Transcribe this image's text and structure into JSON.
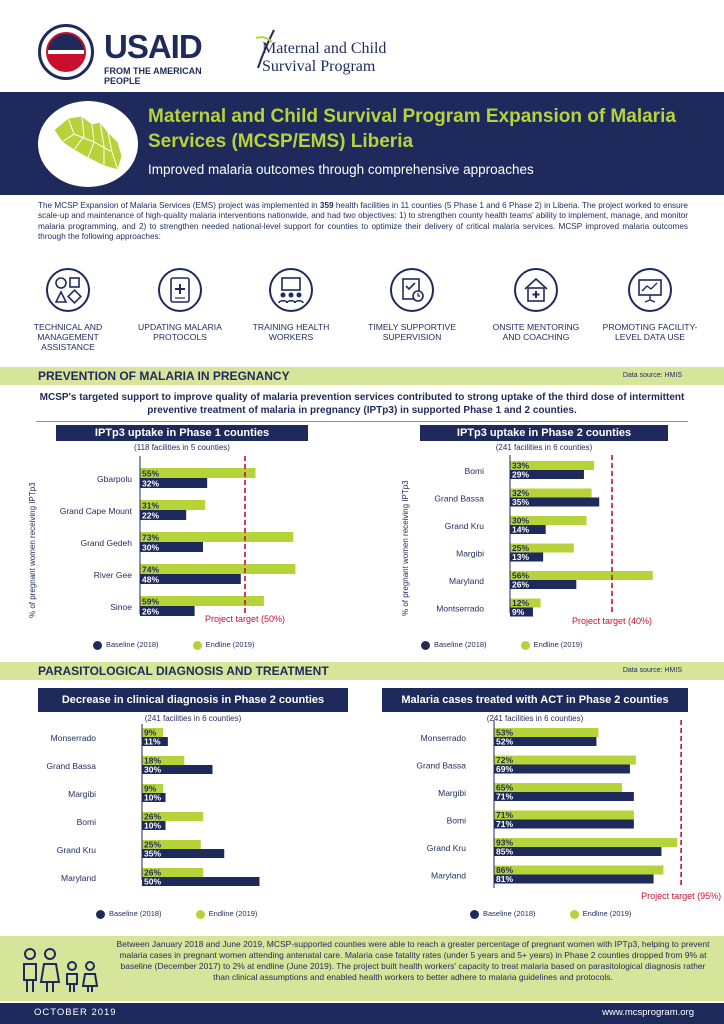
{
  "header": {
    "usaid_word": "USAID",
    "usaid_sub": "FROM THE AMERICAN PEOPLE",
    "mcsp_line1": "Maternal and Child",
    "mcsp_line2": "Survival Program"
  },
  "banner": {
    "title": "Maternal and Child Survival Program Expansion of Malaria Services (MCSP/EMS) Liberia",
    "subtitle": "Improved malaria outcomes through comprehensive approaches"
  },
  "intro": {
    "text_before": "The MCSP Expansion of Malaria Services (EMS) project was implemented in ",
    "facilities": "359",
    "text_after": " health facilities in 11 counties (5 Phase 1 and 6 Phase 2) in Liberia. The project worked to ensure scale-up and maintenance of high-quality malaria interventions nationwide, and had two objectives: 1) to strengthen county health teams' ability to implement, manage, and monitor malaria programming, and 2) to strengthen needed national-level support for counties to optimize their delivery of critical malaria services. MCSP improved malaria outcomes through the following approaches:"
  },
  "approaches": [
    {
      "label": "TECHNICAL AND MANAGEMENT ASSISTANCE",
      "icon": "shapes-icon"
    },
    {
      "label": "UPDATING MALARIA PROTOCOLS",
      "icon": "medical-document-icon"
    },
    {
      "label": "TRAINING HEALTH WORKERS",
      "icon": "training-icon"
    },
    {
      "label": "TIMELY SUPPORTIVE SUPERVISION",
      "icon": "checklist-icon"
    },
    {
      "label": "ONSITE MENTORING AND COACHING",
      "icon": "clinic-icon"
    },
    {
      "label": "PROMOTING FACILITY-LEVEL DATA USE",
      "icon": "presentation-icon"
    }
  ],
  "section1": {
    "title": "PREVENTION OF MALARIA IN PREGNANCY",
    "source": "Data source: HMIS",
    "lead": "MCSP's targeted support to improve quality of malaria prevention services contributed to strong uptake of the third dose of intermittent preventive treatment of malaria in pregnancy (IPTp3) in supported Phase 1 and 2 counties."
  },
  "section2": {
    "title": "PARASITOLOGICAL DIAGNOSIS AND TREATMENT",
    "source": "Data source: HMIS"
  },
  "legend": {
    "baseline": "Baseline (2018)",
    "endline": "Endline (2019)",
    "baseline_color": "#1f2a5c",
    "endline_color": "#b6d33a"
  },
  "chart_data": [
    {
      "type": "bar",
      "title": "IPTp3 uptake in Phase 1 counties",
      "subtitle": "(118 facilities in 5 counties)",
      "ylabel": "% of pregnant women receiving IPTp3",
      "categories": [
        "Gbarpolu",
        "Grand Cape Mount",
        "Grand Gedeh",
        "River Gee",
        "Sinoe"
      ],
      "series": [
        {
          "name": "Endline (2019)",
          "values": [
            55,
            31,
            73,
            74,
            59
          ]
        },
        {
          "name": "Baseline (2018)",
          "values": [
            32,
            22,
            30,
            48,
            26
          ]
        }
      ],
      "target": 50,
      "target_label": "Project target (50%)"
    },
    {
      "type": "bar",
      "title": "IPTp3 uptake in Phase 2 counties",
      "subtitle": "(241 facilities in 6 counties)",
      "ylabel": "% of pregnant women receiving IPTp3",
      "categories": [
        "Bomi",
        "Grand Bassa",
        "Grand Kru",
        "Margibi",
        "Maryland",
        "Montserrado"
      ],
      "series": [
        {
          "name": "Endline (2019)",
          "values": [
            33,
            32,
            30,
            25,
            56,
            12
          ]
        },
        {
          "name": "Baseline (2018)",
          "values": [
            29,
            35,
            14,
            13,
            26,
            9
          ]
        }
      ],
      "target": 40,
      "target_label": "Project target (40%)"
    },
    {
      "type": "bar",
      "title": "Decrease in clinical diagnosis in Phase 2 counties",
      "subtitle": "(241 facilities in 6 counties)",
      "categories": [
        "Monserrado",
        "Grand Bassa",
        "Margibi",
        "Bomi",
        "Grand Kru",
        "Maryland"
      ],
      "series": [
        {
          "name": "Endline (2019)",
          "values": [
            9,
            18,
            9,
            26,
            25,
            26
          ]
        },
        {
          "name": "Baseline (2018)",
          "values": [
            11,
            30,
            10,
            10,
            35,
            50
          ]
        }
      ]
    },
    {
      "type": "bar",
      "title": "Malaria cases treated with ACT in Phase 2 counties",
      "subtitle": "(241 facilities in 6 counties)",
      "categories": [
        "Monserrado",
        "Grand Bassa",
        "Margibi",
        "Bomi",
        "Grand Kru",
        "Maryland"
      ],
      "series": [
        {
          "name": "Endline (2019)",
          "values": [
            53,
            72,
            65,
            71,
            93,
            86
          ]
        },
        {
          "name": "Baseline (2018)",
          "values": [
            52,
            69,
            71,
            71,
            85,
            81
          ]
        }
      ],
      "target": 95,
      "target_label": "Project target (95%)"
    }
  ],
  "footer": {
    "text": "Between January 2018 and June 2019, MCSP-supported counties were able to reach a greater percentage of pregnant women with IPTp3, helping to prevent malaria cases in pregnant women attending antenatal care. Malaria case fatality rates (under 5 years and 5+ years) in Phase 2 counties dropped from 9% at baseline (December 2017) to 2% at endline (June 2019). The project built health workers' capacity to treat malaria based on parasitological diagnosis rather than clinical assumptions and enabled health workers to better adhere to malaria guidelines and protocols.",
    "date": "OCTOBER 2019",
    "site": "www.mcsprogram.org"
  }
}
